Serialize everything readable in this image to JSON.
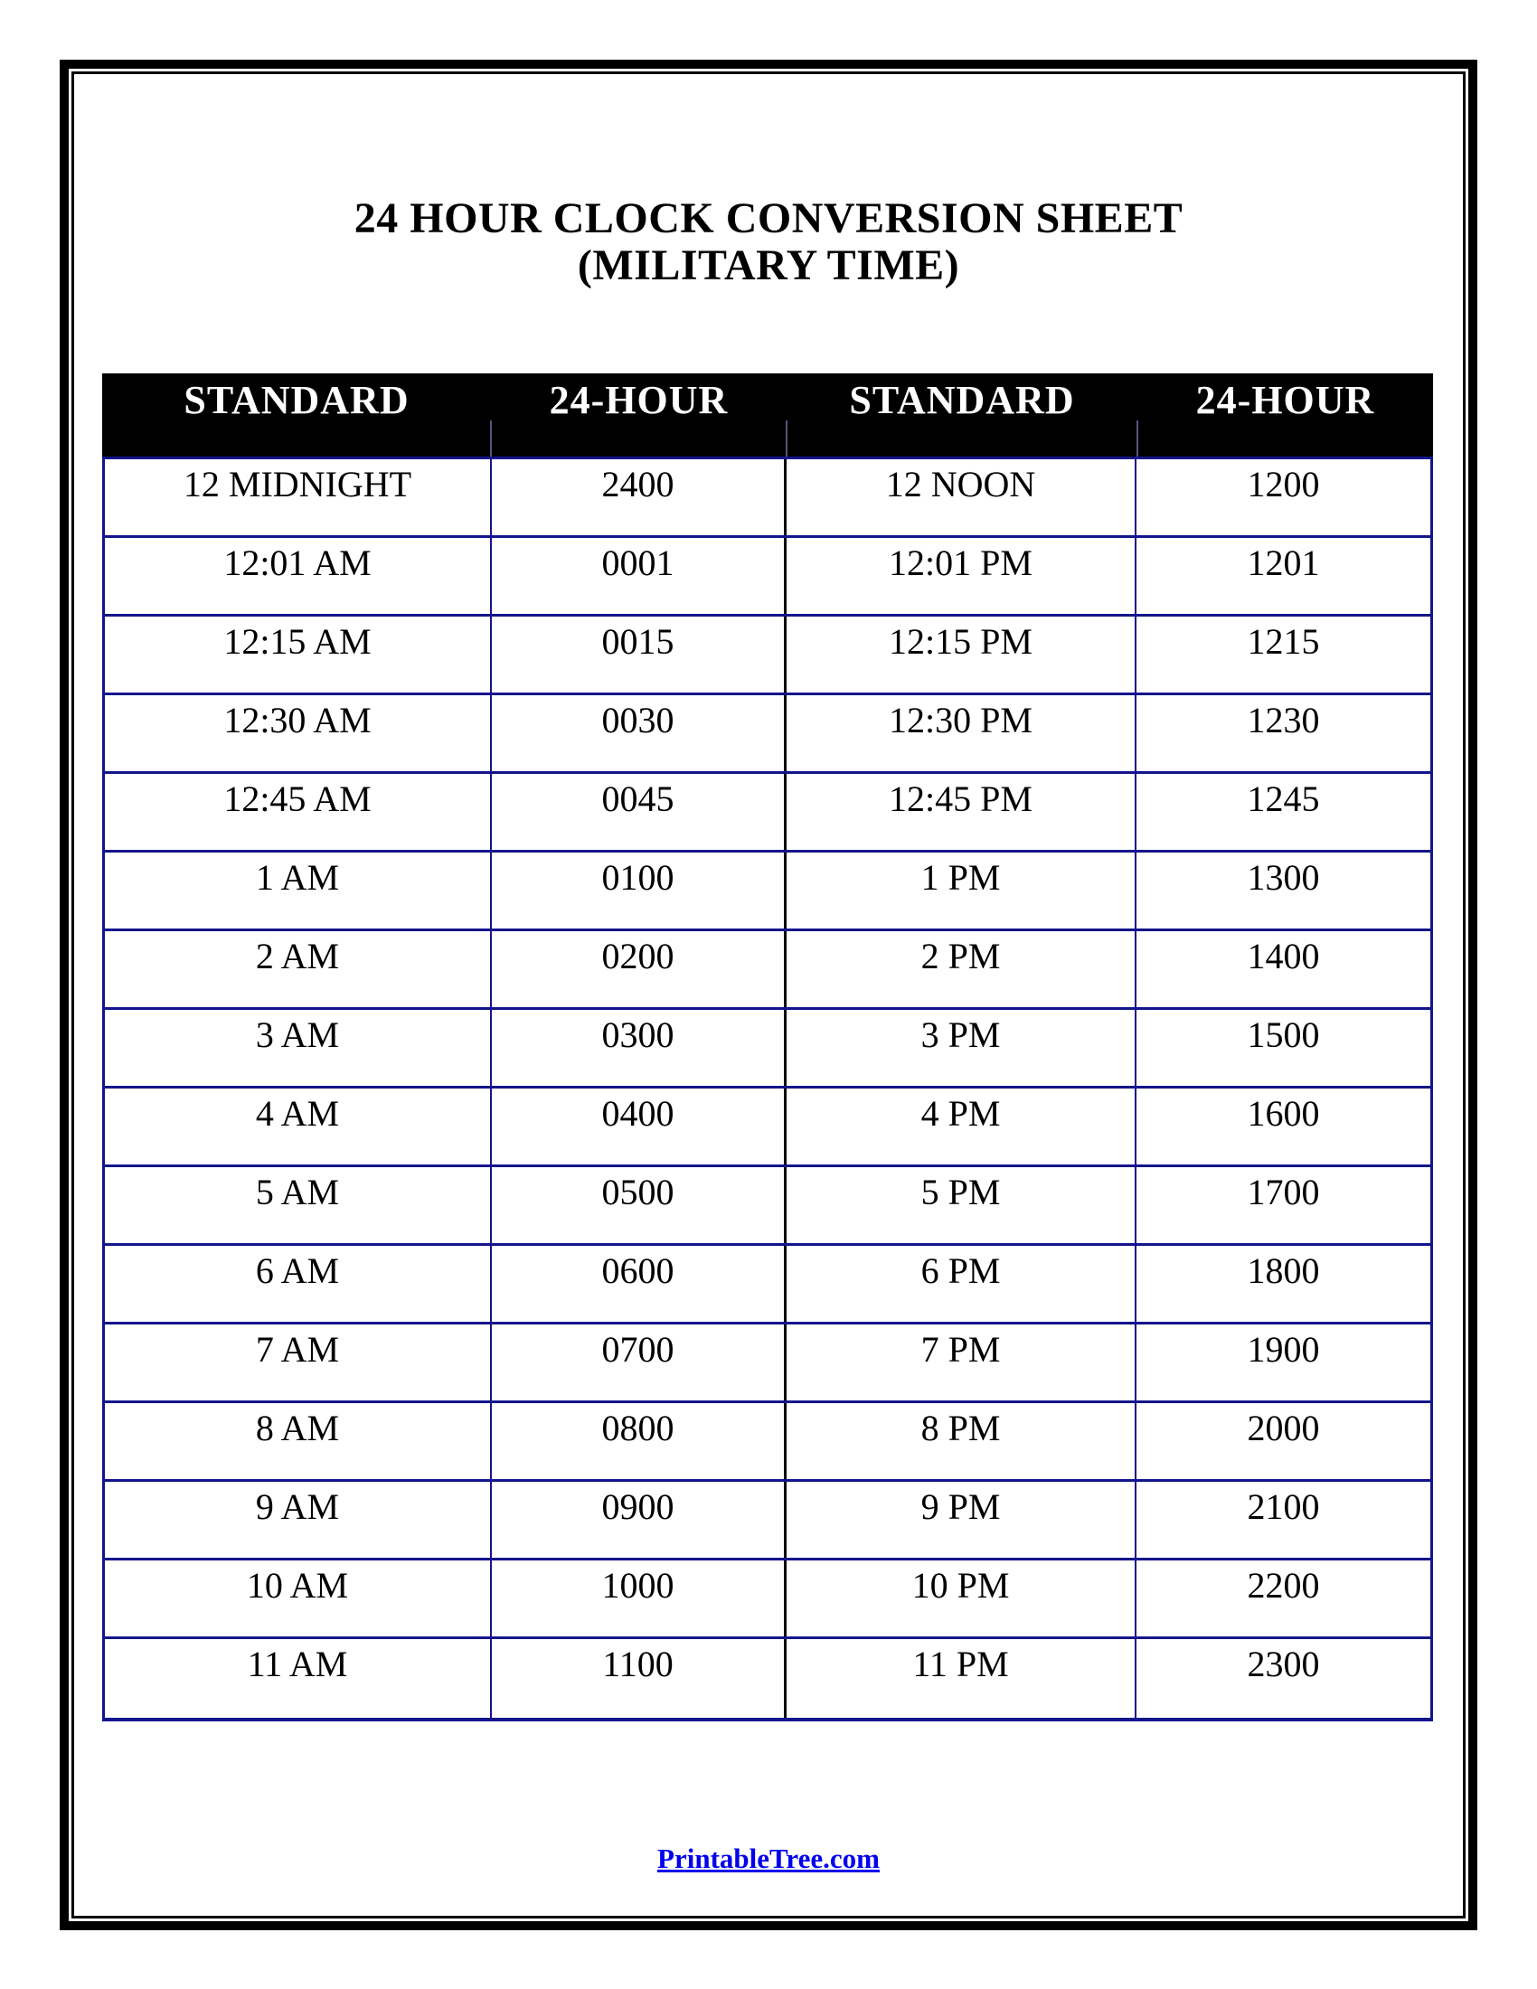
{
  "title": {
    "line1": "24 HOUR CLOCK CONVERSION SHEET",
    "line2": "(MILITARY TIME)"
  },
  "table": {
    "headers": [
      "STANDARD",
      "24-HOUR",
      "STANDARD",
      "24-HOUR"
    ],
    "rows": [
      [
        "12 MIDNIGHT",
        "2400",
        "12 NOON",
        "1200"
      ],
      [
        "12:01 AM",
        "0001",
        "12:01 PM",
        "1201"
      ],
      [
        "12:15 AM",
        "0015",
        "12:15 PM",
        "1215"
      ],
      [
        "12:30 AM",
        "0030",
        "12:30 PM",
        "1230"
      ],
      [
        "12:45 AM",
        "0045",
        "12:45 PM",
        "1245"
      ],
      [
        "1 AM",
        "0100",
        "1 PM",
        "1300"
      ],
      [
        "2 AM",
        "0200",
        "2 PM",
        "1400"
      ],
      [
        "3 AM",
        "0300",
        "3 PM",
        "1500"
      ],
      [
        "4 AM",
        "0400",
        "4 PM",
        "1600"
      ],
      [
        "5 AM",
        "0500",
        "5 PM",
        "1700"
      ],
      [
        "6 AM",
        "0600",
        "6 PM",
        "1800"
      ],
      [
        "7 AM",
        "0700",
        "7 PM",
        "1900"
      ],
      [
        "8 AM",
        "0800",
        "8 PM",
        "2000"
      ],
      [
        "9 AM",
        "0900",
        "9 PM",
        "2100"
      ],
      [
        "10 AM",
        "1000",
        "10 PM",
        "2200"
      ],
      [
        "11 AM",
        "1100",
        "11 PM",
        "2300"
      ]
    ]
  },
  "footer": {
    "link_text": "PrintableTree.com"
  },
  "colors": {
    "border_blue": "#14148c",
    "center_divider": "#000000",
    "header_bg": "#000000",
    "header_text": "#ffffff",
    "link_blue": "#0000ee"
  }
}
